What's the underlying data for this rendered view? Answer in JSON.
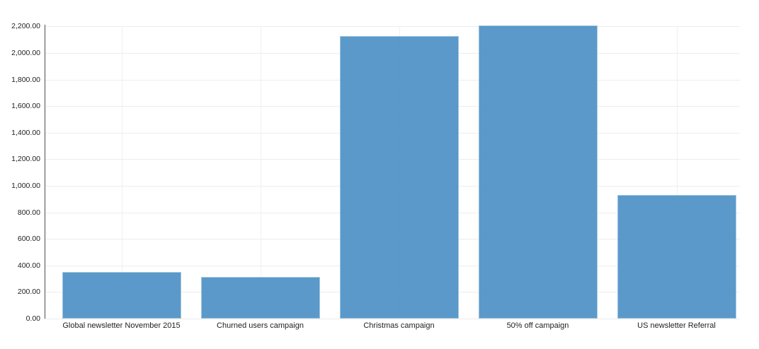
{
  "chart_data": {
    "type": "bar",
    "categories": [
      "Global newsletter November 2015",
      "Churned users campaign",
      "Christmas campaign",
      "50% off campaign",
      "US newsletter Referral"
    ],
    "values": [
      352,
      316,
      2130,
      2206,
      931
    ],
    "title": "",
    "xlabel": "",
    "ylabel": "",
    "ylim": [
      0,
      2200
    ],
    "y_ticks": [
      {
        "value": 0,
        "label": "0.00"
      },
      {
        "value": 200,
        "label": "200.00"
      },
      {
        "value": 400,
        "label": "400.00"
      },
      {
        "value": 600,
        "label": "600.00"
      },
      {
        "value": 800,
        "label": "800.00"
      },
      {
        "value": 1000,
        "label": "1,000.00"
      },
      {
        "value": 1200,
        "label": "1,200.00"
      },
      {
        "value": 1400,
        "label": "1,400.00"
      },
      {
        "value": 1600,
        "label": "1,600.00"
      },
      {
        "value": 1800,
        "label": "1,800.00"
      },
      {
        "value": 2000,
        "label": "2,000.00"
      },
      {
        "value": 2200,
        "label": "2,200.00"
      }
    ],
    "grid": true,
    "legend": false
  },
  "colors": {
    "bar_fill": "#5596c8",
    "bar_border_highlight": "#8fbddc",
    "grid_line": "#ededed",
    "axis_line": "#4d4d4d",
    "tick_text": "#222222",
    "background": "#ffffff"
  }
}
